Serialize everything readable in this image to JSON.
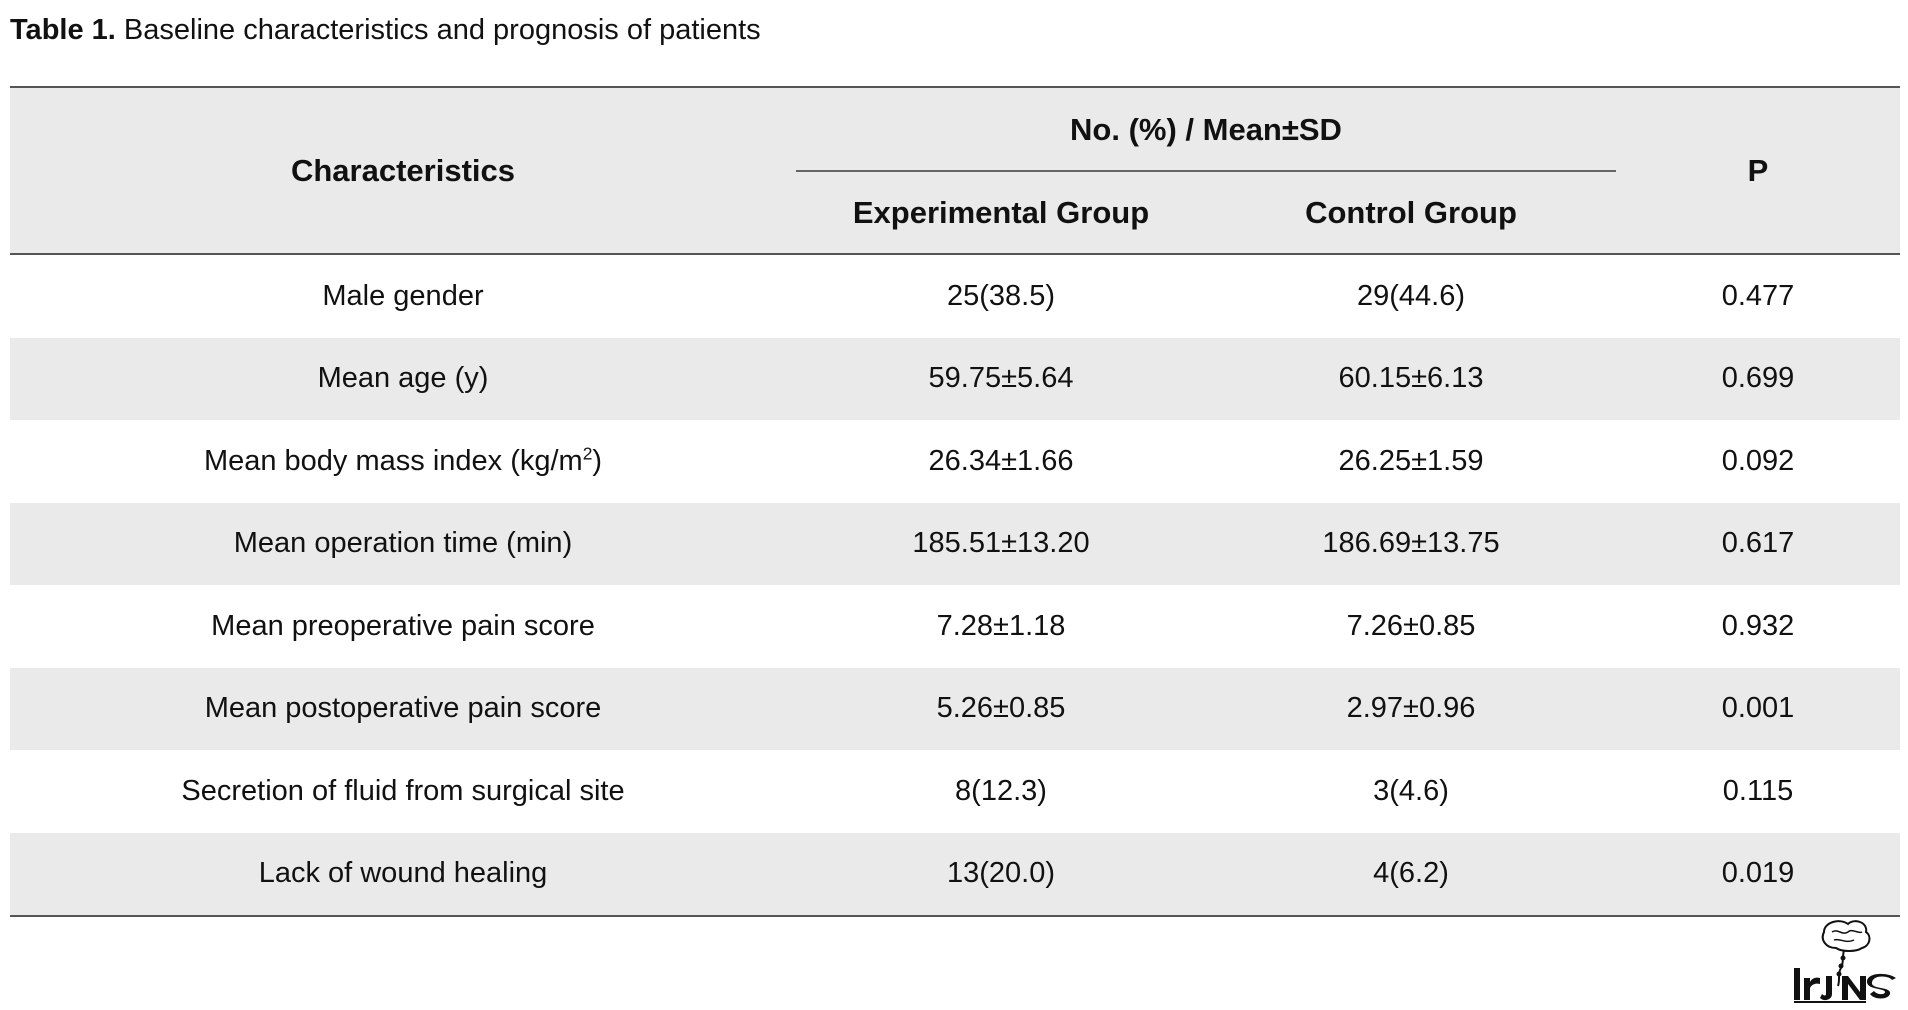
{
  "caption": {
    "label": "Table 1.",
    "text": "Baseline characteristics and prognosis of patients"
  },
  "table": {
    "headers": {
      "characteristics": "Characteristics",
      "group_header": "No. (%) / Mean±SD",
      "experimental": "Experimental Group",
      "control": "Control Group",
      "p": "P"
    },
    "rows": [
      {
        "label": "Male gender",
        "experimental": "25(38.5)",
        "control": "29(44.6)",
        "p": "0.477"
      },
      {
        "label": "Mean age (y)",
        "experimental": "59.75±5.64",
        "control": "60.15±6.13",
        "p": "0.699"
      },
      {
        "label": "Mean body mass index (kg/m",
        "label_sup": "2",
        "label_tail": ")",
        "experimental": "26.34±1.66",
        "control": "26.25±1.59",
        "p": "0.092"
      },
      {
        "label": "Mean operation time (min)",
        "experimental": "185.51±13.20",
        "control": "186.69±13.75",
        "p": "0.617"
      },
      {
        "label": "Mean preoperative pain score",
        "experimental": "7.28±1.18",
        "control": "7.26±0.85",
        "p": "0.932"
      },
      {
        "label": "Mean postoperative pain score",
        "experimental": "5.26±0.85",
        "control": "2.97±0.96",
        "p": "0.001"
      },
      {
        "label": "Secretion of fluid from surgical site",
        "experimental": "8(12.3)",
        "control": "3(4.6)",
        "p": "0.115"
      },
      {
        "label": "Lack of wound healing",
        "experimental": "13(20.0)",
        "control": "4(6.2)",
        "p": "0.019"
      }
    ]
  },
  "logo": {
    "text": "IrJNS",
    "icon": "journal-logo-icon"
  }
}
